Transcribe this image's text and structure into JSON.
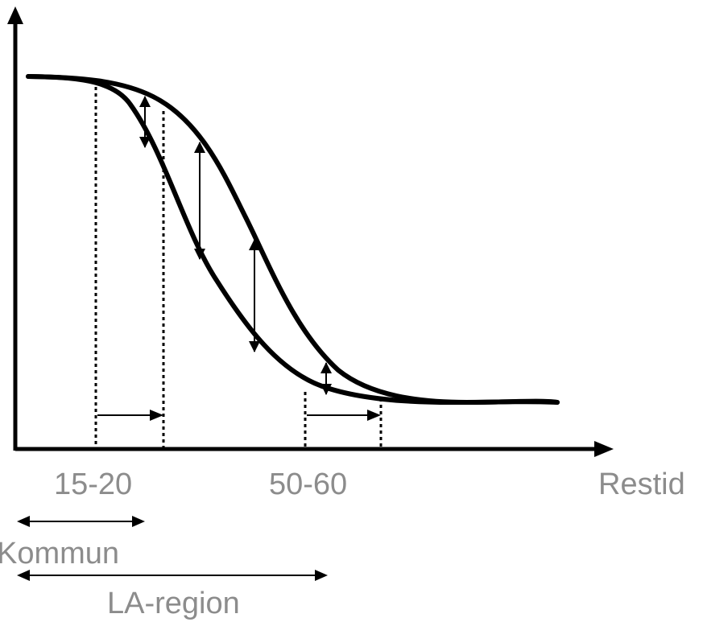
{
  "labels": {
    "x_axis": "Restid",
    "tick_1": "15-20",
    "tick_2": "50-60",
    "range_short": "Kommun",
    "range_long": "LA-region"
  },
  "colors": {
    "line": "#000000",
    "text": "#8c8c8c",
    "background": "#ffffff"
  }
}
